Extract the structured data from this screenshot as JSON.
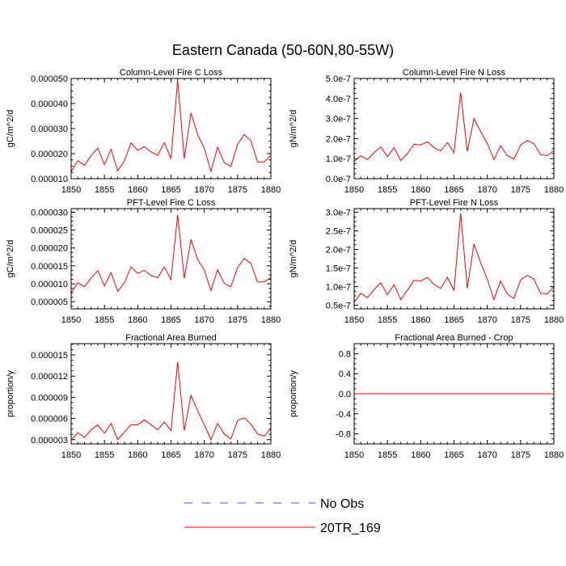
{
  "figure": {
    "title": "Eastern Canada (50-60N,80-55W)"
  },
  "legend": {
    "items": [
      {
        "label": "No Obs",
        "style": "dashed",
        "color": "#5555cc"
      },
      {
        "label": "20TR_169",
        "style": "solid",
        "color": "#ff0000"
      }
    ]
  },
  "chart_data": [
    {
      "type": "line",
      "title": "Column-Level Fire C Loss",
      "xlabel": "",
      "ylabel": "gC/m^2/d",
      "xlim": [
        1850,
        1880
      ],
      "ylim": [
        1e-05,
        5e-05
      ],
      "x_ticks": [
        "1850",
        "1855",
        "1860",
        "1865",
        "1870",
        "1875",
        "1880"
      ],
      "y_ticks": [
        {
          "value": 1e-05,
          "label": "0.000010"
        },
        {
          "value": 2e-05,
          "label": "0.000020"
        },
        {
          "value": 3e-05,
          "label": "0.000030"
        },
        {
          "value": 4e-05,
          "label": "0.000040"
        },
        {
          "value": 5e-05,
          "label": "0.000050"
        }
      ],
      "series": [
        {
          "name": "20TR_169",
          "color": "#ff0000",
          "x": [
            1850,
            1851,
            1852,
            1853,
            1854,
            1855,
            1856,
            1857,
            1858,
            1859,
            1860,
            1861,
            1862,
            1863,
            1864,
            1865,
            1866,
            1867,
            1868,
            1869,
            1870,
            1871,
            1872,
            1873,
            1874,
            1875,
            1876,
            1877,
            1878,
            1879,
            1880
          ],
          "y": [
            1.28e-05,
            1.72e-05,
            1.53e-05,
            1.93e-05,
            2.22e-05,
            1.56e-05,
            2.17e-05,
            1.31e-05,
            1.72e-05,
            2.43e-05,
            2.13e-05,
            2.28e-05,
            2.07e-05,
            1.93e-05,
            2.44e-05,
            1.8e-05,
            4.93e-05,
            1.8e-05,
            3.62e-05,
            2.76e-05,
            2.21e-05,
            1.29e-05,
            2.26e-05,
            1.64e-05,
            1.49e-05,
            2.37e-05,
            2.76e-05,
            2.51e-05,
            1.67e-05,
            1.67e-05,
            1.93e-05
          ]
        }
      ]
    },
    {
      "type": "line",
      "title": "Column-Level Fire N Loss",
      "xlabel": "",
      "ylabel": "gN/m^2/d",
      "xlim": [
        1850,
        1880
      ],
      "ylim": [
        0,
        5e-07
      ],
      "x_ticks": [
        "1850",
        "1855",
        "1860",
        "1865",
        "1870",
        "1875",
        "1880"
      ],
      "y_ticks": [
        {
          "value": 0,
          "label": "0.0e-7"
        },
        {
          "value": 1e-07,
          "label": "1.0e-7"
        },
        {
          "value": 2e-07,
          "label": "2.0e-7"
        },
        {
          "value": 3e-07,
          "label": "3.0e-7"
        },
        {
          "value": 4e-07,
          "label": "4.0e-7"
        },
        {
          "value": 5e-07,
          "label": "5.0e-7"
        }
      ],
      "series": [
        {
          "name": "20TR_169",
          "color": "#ff0000",
          "x": [
            1850,
            1851,
            1852,
            1853,
            1854,
            1855,
            1856,
            1857,
            1858,
            1859,
            1860,
            1861,
            1862,
            1863,
            1864,
            1865,
            1866,
            1867,
            1868,
            1869,
            1870,
            1871,
            1872,
            1873,
            1874,
            1875,
            1876,
            1877,
            1878,
            1879,
            1880
          ],
          "y": [
            8.5e-08,
            1.15e-07,
            9.5e-08,
            1.3e-07,
            1.58e-07,
            1.1e-07,
            1.55e-07,
            9e-08,
            1.25e-07,
            1.72e-07,
            1.68e-07,
            1.84e-07,
            1.55e-07,
            1.38e-07,
            1.8e-07,
            1.3e-07,
            4.3e-07,
            1.35e-07,
            3e-07,
            2.35e-07,
            1.75e-07,
            9.5e-08,
            1.65e-07,
            1.15e-07,
            9.8e-08,
            1.68e-07,
            1.9e-07,
            1.75e-07,
            1.2e-07,
            1.15e-07,
            1.4e-07
          ]
        }
      ]
    },
    {
      "type": "line",
      "title": "PFT-Level Fire C Loss",
      "xlabel": "",
      "ylabel": "gC/m^2/d",
      "xlim": [
        1850,
        1880
      ],
      "ylim": [
        3e-06,
        3.1e-05
      ],
      "x_ticks": [
        "1850",
        "1855",
        "1860",
        "1865",
        "1870",
        "1875",
        "1880"
      ],
      "y_ticks": [
        {
          "value": 5e-06,
          "label": "0.000005"
        },
        {
          "value": 1e-05,
          "label": "0.000010"
        },
        {
          "value": 1.5e-05,
          "label": "0.000015"
        },
        {
          "value": 2e-05,
          "label": "0.000020"
        },
        {
          "value": 2.5e-05,
          "label": "0.000025"
        },
        {
          "value": 3e-05,
          "label": "0.000030"
        }
      ],
      "series": [
        {
          "name": "20TR_169",
          "color": "#ff0000",
          "x": [
            1850,
            1851,
            1852,
            1853,
            1854,
            1855,
            1856,
            1857,
            1858,
            1859,
            1860,
            1861,
            1862,
            1863,
            1864,
            1865,
            1866,
            1867,
            1868,
            1869,
            1870,
            1871,
            1872,
            1873,
            1874,
            1875,
            1876,
            1877,
            1878,
            1879,
            1880
          ],
          "y": [
            7.5e-06,
            1.03e-05,
            9.2e-06,
            1.16e-05,
            1.37e-05,
            9.4e-06,
            1.31e-05,
            7.9e-06,
            1.03e-05,
            1.47e-05,
            1.29e-05,
            1.38e-05,
            1.23e-05,
            1.17e-05,
            1.47e-05,
            1.12e-05,
            2.93e-05,
            1.15e-05,
            2.24e-05,
            1.68e-05,
            1.38e-05,
            8.1e-06,
            1.39e-05,
            1.01e-05,
            9.2e-06,
            1.45e-05,
            1.71e-05,
            1.57e-05,
            1.05e-05,
            1.05e-05,
            1.18e-05
          ]
        }
      ]
    },
    {
      "type": "line",
      "title": "PFT-Level Fire N Loss",
      "xlabel": "",
      "ylabel": "gN/m^2/d",
      "xlim": [
        1850,
        1880
      ],
      "ylim": [
        4e-08,
        3.1e-07
      ],
      "x_ticks": [
        "1850",
        "1855",
        "1860",
        "1865",
        "1870",
        "1875",
        "1880"
      ],
      "y_ticks": [
        {
          "value": 5e-08,
          "label": "0.5e-7"
        },
        {
          "value": 1e-07,
          "label": "1.0e-7"
        },
        {
          "value": 1.5e-07,
          "label": "1.5e-7"
        },
        {
          "value": 2e-07,
          "label": "2.0e-7"
        },
        {
          "value": 2.5e-07,
          "label": "2.5e-7"
        },
        {
          "value": 3e-07,
          "label": "3.0e-7"
        }
      ],
      "series": [
        {
          "name": "20TR_169",
          "color": "#ff0000",
          "x": [
            1850,
            1851,
            1852,
            1853,
            1854,
            1855,
            1856,
            1857,
            1858,
            1859,
            1860,
            1861,
            1862,
            1863,
            1864,
            1865,
            1866,
            1867,
            1868,
            1869,
            1870,
            1871,
            1872,
            1873,
            1874,
            1875,
            1876,
            1877,
            1878,
            1879,
            1880
          ],
          "y": [
            5.8e-08,
            8.2e-08,
            7e-08,
            9.2e-08,
            1.1e-07,
            7.8e-08,
            1.05e-07,
            6.5e-08,
            9e-08,
            1.17e-07,
            1.15e-07,
            1.25e-07,
            1.06e-07,
            9.5e-08,
            1.25e-07,
            9e-08,
            2.97e-07,
            9.5e-08,
            2.15e-07,
            1.65e-07,
            1.2e-07,
            6.5e-08,
            1.15e-07,
            8e-08,
            6.8e-08,
            1.18e-07,
            1.3e-07,
            1.2e-07,
            8.2e-08,
            8e-08,
            1e-07
          ]
        }
      ]
    },
    {
      "type": "line",
      "title": "Fractional Area Burned",
      "xlabel": "",
      "ylabel": "proportion/y",
      "xlim": [
        1850,
        1880
      ],
      "ylim": [
        2.4e-06,
        1.66e-05
      ],
      "x_ticks": [
        "1850",
        "1855",
        "1860",
        "1865",
        "1870",
        "1875",
        "1880"
      ],
      "y_ticks": [
        {
          "value": 3e-06,
          "label": "0.000003"
        },
        {
          "value": 6e-06,
          "label": "0.000006"
        },
        {
          "value": 9e-06,
          "label": "0.000009"
        },
        {
          "value": 1.2e-05,
          "label": "0.000012"
        },
        {
          "value": 1.5e-05,
          "label": "0.000015"
        }
      ],
      "series": [
        {
          "name": "20TR_169",
          "color": "#ff0000",
          "x": [
            1850,
            1851,
            1852,
            1853,
            1854,
            1855,
            1856,
            1857,
            1858,
            1859,
            1860,
            1861,
            1862,
            1863,
            1864,
            1865,
            1866,
            1867,
            1868,
            1869,
            1870,
            1871,
            1872,
            1873,
            1874,
            1875,
            1876,
            1877,
            1878,
            1879,
            1880
          ],
          "y": [
            2.9e-06,
            4e-06,
            3.3e-06,
            4.4e-06,
            5.1e-06,
            3.9e-06,
            5.3e-06,
            3e-06,
            4.1e-06,
            5.1e-06,
            5.1e-06,
            5.8e-06,
            5.1e-06,
            4.4e-06,
            5.5e-06,
            4.3e-06,
            1.4e-05,
            4.3e-06,
            9.3e-06,
            7.1e-06,
            5.1e-06,
            3e-06,
            5.3e-06,
            3.8e-06,
            3.1e-06,
            5.7e-06,
            6.1e-06,
            5.2e-06,
            3.8e-06,
            3.5e-06,
            4.6e-06
          ]
        }
      ]
    },
    {
      "type": "line",
      "title": "Fractional Area Burned - Crop",
      "xlabel": "",
      "ylabel": "proportion/y",
      "xlim": [
        1850,
        1880
      ],
      "ylim": [
        -1.0,
        1.0
      ],
      "x_ticks": [
        "1850",
        "1855",
        "1860",
        "1865",
        "1870",
        "1875",
        "1880"
      ],
      "y_ticks": [
        {
          "value": -0.8,
          "label": "-0.8"
        },
        {
          "value": -0.4,
          "label": "-0.4"
        },
        {
          "value": 0.0,
          "label": "0.0"
        },
        {
          "value": 0.4,
          "label": "0.4"
        },
        {
          "value": 0.8,
          "label": "0.8"
        }
      ],
      "series": [
        {
          "name": "20TR_169",
          "color": "#ff0000",
          "x": [
            1850,
            1880
          ],
          "y": [
            0,
            0
          ]
        }
      ]
    }
  ]
}
